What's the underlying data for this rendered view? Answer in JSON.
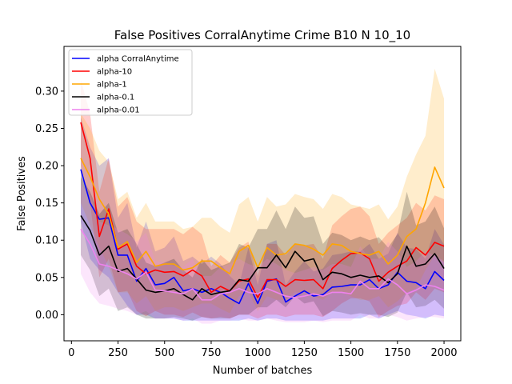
{
  "chart_data": {
    "type": "line",
    "title": "False Positives CorralAnytime Crime B10 N 10_10",
    "xlabel": "Number of batches",
    "ylabel": "False Positives",
    "xlim": [
      -40,
      2090
    ],
    "ylim": [
      -0.035,
      0.36
    ],
    "xticks": [
      0,
      250,
      500,
      750,
      1000,
      1250,
      1500,
      1750,
      2000
    ],
    "yticks": [
      0.0,
      0.05,
      0.1,
      0.15,
      0.2,
      0.25,
      0.3
    ],
    "ytick_labels": [
      "0.00",
      "0.05",
      "0.10",
      "0.15",
      "0.20",
      "0.25",
      "0.30"
    ],
    "grid": false,
    "legend_position": "upper left",
    "x": [
      50,
      100,
      150,
      200,
      250,
      300,
      350,
      400,
      450,
      500,
      550,
      600,
      650,
      700,
      750,
      800,
      850,
      900,
      950,
      1000,
      1050,
      1100,
      1150,
      1200,
      1250,
      1300,
      1350,
      1400,
      1450,
      1500,
      1550,
      1600,
      1650,
      1700,
      1750,
      1800,
      1850,
      1900,
      1950,
      2000
    ],
    "series": [
      {
        "name": "alpha CorralAnytime",
        "color": "#0000ff",
        "values": [
          0.195,
          0.15,
          0.128,
          0.13,
          0.08,
          0.08,
          0.045,
          0.062,
          0.04,
          0.042,
          0.05,
          0.032,
          0.035,
          0.03,
          0.035,
          0.03,
          0.022,
          0.015,
          0.042,
          0.015,
          0.045,
          0.048,
          0.017,
          0.025,
          0.032,
          0.025,
          0.027,
          0.037,
          0.038,
          0.04,
          0.04,
          0.047,
          0.035,
          0.04,
          0.057,
          0.045,
          0.043,
          0.035,
          0.058,
          0.046
        ],
        "lower": [
          0.125,
          0.075,
          0.06,
          0.05,
          0.03,
          0.012,
          0.0,
          0.0,
          -0.005,
          -0.005,
          -0.005,
          -0.008,
          -0.008,
          -0.008,
          -0.008,
          -0.008,
          -0.008,
          -0.008,
          -0.005,
          -0.008,
          -0.005,
          -0.005,
          -0.008,
          -0.008,
          -0.008,
          -0.008,
          -0.008,
          -0.005,
          -0.005,
          -0.005,
          -0.005,
          0.0,
          -0.005,
          0.0,
          0.005,
          0.0,
          -0.002,
          -0.005,
          0.0,
          -0.002
        ],
        "upper": [
          0.265,
          0.225,
          0.2,
          0.21,
          0.13,
          0.15,
          0.09,
          0.125,
          0.085,
          0.09,
          0.105,
          0.072,
          0.078,
          0.068,
          0.078,
          0.068,
          0.052,
          0.04,
          0.09,
          0.04,
          0.095,
          0.1,
          0.04,
          0.058,
          0.072,
          0.058,
          0.062,
          0.08,
          0.082,
          0.085,
          0.085,
          0.095,
          0.075,
          0.082,
          0.11,
          0.09,
          0.088,
          0.075,
          0.115,
          0.094
        ]
      },
      {
        "name": "alpha-10",
        "color": "#ff0000",
        "values": [
          0.258,
          0.21,
          0.105,
          0.142,
          0.088,
          0.095,
          0.065,
          0.055,
          0.06,
          0.057,
          0.058,
          0.052,
          0.06,
          0.052,
          0.03,
          0.038,
          0.032,
          0.045,
          0.048,
          0.023,
          0.047,
          0.047,
          0.038,
          0.047,
          0.046,
          0.047,
          0.035,
          0.062,
          0.073,
          0.082,
          0.083,
          0.075,
          0.045,
          0.057,
          0.065,
          0.072,
          0.09,
          0.08,
          0.097,
          0.092
        ],
        "lower": [
          0.2,
          0.15,
          0.05,
          0.075,
          0.03,
          0.032,
          0.005,
          -0.002,
          0.005,
          0.0,
          0.0,
          -0.003,
          0.003,
          -0.003,
          -0.005,
          -0.003,
          -0.005,
          0.0,
          0.0,
          -0.005,
          0.0,
          0.0,
          -0.003,
          0.0,
          0.0,
          0.0,
          -0.003,
          0.005,
          0.015,
          0.022,
          0.022,
          0.018,
          -0.003,
          0.005,
          0.012,
          0.015,
          0.03,
          0.02,
          0.035,
          0.03
        ],
        "upper": [
          0.315,
          0.27,
          0.165,
          0.21,
          0.145,
          0.158,
          0.125,
          0.115,
          0.115,
          0.115,
          0.115,
          0.108,
          0.118,
          0.108,
          0.065,
          0.08,
          0.07,
          0.09,
          0.098,
          0.052,
          0.095,
          0.095,
          0.08,
          0.095,
          0.093,
          0.095,
          0.075,
          0.12,
          0.132,
          0.142,
          0.145,
          0.132,
          0.095,
          0.11,
          0.12,
          0.13,
          0.15,
          0.14,
          0.16,
          0.155
        ]
      },
      {
        "name": "alpha-1",
        "color": "#ffa500",
        "values": [
          0.21,
          0.185,
          0.155,
          0.135,
          0.09,
          0.098,
          0.07,
          0.085,
          0.065,
          0.068,
          0.068,
          0.06,
          0.063,
          0.072,
          0.072,
          0.063,
          0.055,
          0.085,
          0.093,
          0.063,
          0.09,
          0.08,
          0.082,
          0.095,
          0.093,
          0.088,
          0.08,
          0.095,
          0.093,
          0.085,
          0.082,
          0.08,
          0.085,
          0.068,
          0.08,
          0.105,
          0.115,
          0.15,
          0.198,
          0.17
        ],
        "lower": [
          0.15,
          0.12,
          0.09,
          0.065,
          0.03,
          0.03,
          0.015,
          0.025,
          0.005,
          0.01,
          0.01,
          0.005,
          0.01,
          0.015,
          0.015,
          0.008,
          0.002,
          0.025,
          0.03,
          0.005,
          0.025,
          0.02,
          0.02,
          0.03,
          0.03,
          0.025,
          0.02,
          0.03,
          0.03,
          0.025,
          0.02,
          0.02,
          0.025,
          0.01,
          0.018,
          0.03,
          0.035,
          0.06,
          0.08,
          0.07
        ],
        "upper": [
          0.27,
          0.25,
          0.22,
          0.205,
          0.155,
          0.165,
          0.13,
          0.15,
          0.125,
          0.125,
          0.125,
          0.115,
          0.118,
          0.13,
          0.13,
          0.118,
          0.11,
          0.148,
          0.158,
          0.125,
          0.158,
          0.145,
          0.148,
          0.162,
          0.158,
          0.155,
          0.142,
          0.162,
          0.158,
          0.148,
          0.145,
          0.142,
          0.148,
          0.128,
          0.145,
          0.185,
          0.215,
          0.24,
          0.33,
          0.29
        ]
      },
      {
        "name": "alpha-0.1",
        "color": "#000000",
        "values": [
          0.133,
          0.113,
          0.08,
          0.092,
          0.058,
          0.062,
          0.048,
          0.033,
          0.03,
          0.032,
          0.035,
          0.027,
          0.02,
          0.035,
          0.027,
          0.03,
          0.032,
          0.047,
          0.045,
          0.063,
          0.063,
          0.08,
          0.063,
          0.085,
          0.072,
          0.075,
          0.047,
          0.057,
          0.055,
          0.05,
          0.053,
          0.05,
          0.052,
          0.043,
          0.055,
          0.092,
          0.065,
          0.068,
          0.082,
          0.062
        ],
        "lower": [
          0.08,
          0.06,
          0.025,
          0.035,
          0.005,
          0.01,
          0.0,
          -0.005,
          -0.005,
          -0.005,
          -0.003,
          -0.005,
          -0.008,
          -0.003,
          -0.005,
          -0.005,
          -0.005,
          0.0,
          0.0,
          0.01,
          0.01,
          0.02,
          0.01,
          0.025,
          0.015,
          0.018,
          -0.002,
          0.005,
          0.003,
          0.0,
          0.002,
          0.0,
          0.0,
          -0.003,
          0.003,
          0.03,
          0.01,
          0.012,
          0.02,
          0.008
        ],
        "upper": [
          0.185,
          0.165,
          0.135,
          0.15,
          0.11,
          0.115,
          0.095,
          0.07,
          0.065,
          0.07,
          0.075,
          0.06,
          0.05,
          0.075,
          0.06,
          0.065,
          0.07,
          0.095,
          0.09,
          0.115,
          0.115,
          0.14,
          0.115,
          0.145,
          0.13,
          0.132,
          0.095,
          0.11,
          0.107,
          0.1,
          0.105,
          0.1,
          0.104,
          0.09,
          0.108,
          0.165,
          0.12,
          0.125,
          0.145,
          0.116
        ]
      },
      {
        "name": "alpha-0.01",
        "color": "#ee82ee",
        "values": [
          0.115,
          0.095,
          0.068,
          0.065,
          0.06,
          0.055,
          0.048,
          0.057,
          0.033,
          0.032,
          0.03,
          0.028,
          0.035,
          0.02,
          0.02,
          0.028,
          0.03,
          0.035,
          0.03,
          0.028,
          0.035,
          0.03,
          0.025,
          0.023,
          0.025,
          0.028,
          0.025,
          0.03,
          0.03,
          0.028,
          0.045,
          0.035,
          0.035,
          0.048,
          0.04,
          0.028,
          0.033,
          0.04,
          0.038,
          0.033
        ],
        "lower": [
          0.055,
          0.03,
          0.015,
          0.012,
          0.008,
          0.005,
          0.0,
          0.005,
          -0.005,
          -0.005,
          -0.005,
          -0.008,
          -0.005,
          -0.012,
          -0.012,
          -0.008,
          -0.008,
          -0.005,
          -0.008,
          -0.008,
          -0.005,
          -0.008,
          -0.01,
          -0.01,
          -0.01,
          -0.008,
          -0.01,
          -0.008,
          -0.008,
          -0.008,
          0.0,
          -0.005,
          -0.005,
          0.0,
          -0.003,
          -0.008,
          -0.005,
          -0.003,
          -0.003,
          -0.005
        ],
        "upper": [
          0.175,
          0.16,
          0.125,
          0.12,
          0.115,
          0.108,
          0.098,
          0.11,
          0.072,
          0.07,
          0.066,
          0.064,
          0.075,
          0.052,
          0.052,
          0.064,
          0.068,
          0.075,
          0.068,
          0.064,
          0.075,
          0.068,
          0.06,
          0.056,
          0.06,
          0.064,
          0.06,
          0.068,
          0.068,
          0.064,
          0.092,
          0.075,
          0.075,
          0.098,
          0.085,
          0.064,
          0.072,
          0.085,
          0.08,
          0.072
        ]
      }
    ]
  }
}
